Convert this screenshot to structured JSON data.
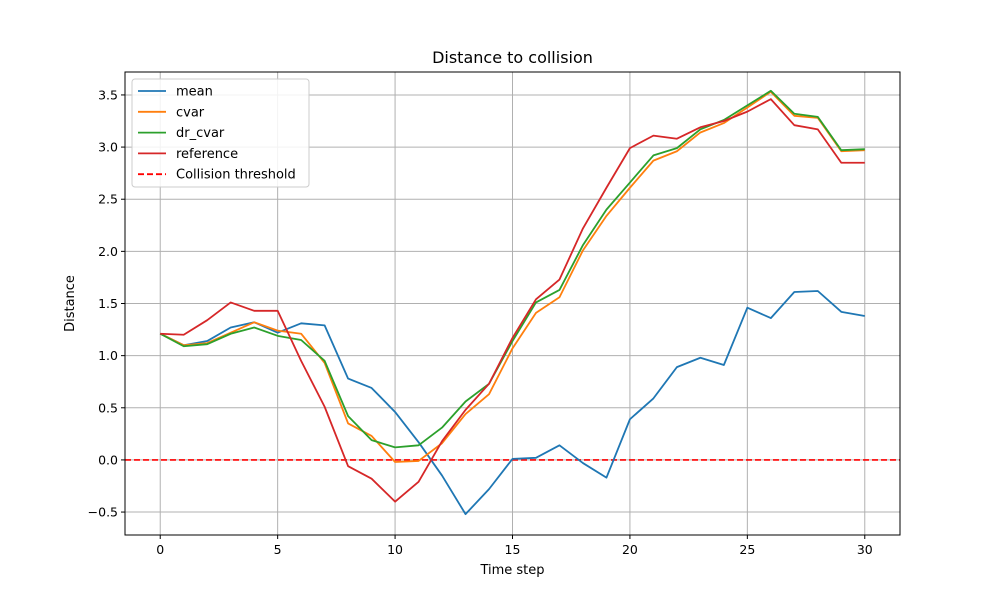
{
  "chart_data": {
    "type": "line",
    "title": "Distance to collision",
    "xlabel": "Time step",
    "ylabel": "Distance",
    "xlim": [
      -1.5,
      31.5
    ],
    "ylim": [
      -0.72,
      3.72
    ],
    "xticks": [
      0,
      5,
      10,
      15,
      20,
      25,
      30
    ],
    "yticks": [
      -0.5,
      0.0,
      0.5,
      1.0,
      1.5,
      2.0,
      2.5,
      3.0,
      3.5
    ],
    "xtick_labels": [
      "0",
      "5",
      "10",
      "15",
      "20",
      "25",
      "30"
    ],
    "ytick_labels": [
      "−0.5",
      "0.0",
      "0.5",
      "1.0",
      "1.5",
      "2.0",
      "2.5",
      "3.0",
      "3.5"
    ],
    "grid": true,
    "legend_position": "top-left",
    "x": [
      0,
      1,
      2,
      3,
      4,
      5,
      6,
      7,
      8,
      9,
      10,
      11,
      12,
      13,
      14,
      15,
      16,
      17,
      18,
      19,
      20,
      21,
      22,
      23,
      24,
      25,
      26,
      27,
      28,
      29,
      30
    ],
    "series": [
      {
        "name": "mean",
        "color": "#1f77b4",
        "style": "solid",
        "values": [
          1.21,
          1.1,
          1.14,
          1.27,
          1.32,
          1.22,
          1.31,
          1.29,
          0.78,
          0.69,
          0.46,
          0.17,
          -0.15,
          -0.52,
          -0.28,
          0.01,
          0.02,
          0.14,
          -0.03,
          -0.17,
          0.39,
          0.59,
          0.89,
          0.98,
          0.91,
          1.46,
          1.36,
          1.61,
          1.62,
          1.42,
          1.38
        ]
      },
      {
        "name": "cvar",
        "color": "#ff7f0e",
        "style": "solid",
        "values": [
          1.21,
          1.1,
          1.12,
          1.22,
          1.32,
          1.24,
          1.21,
          0.93,
          0.35,
          0.23,
          -0.02,
          -0.01,
          0.16,
          0.44,
          0.63,
          1.07,
          1.41,
          1.56,
          2.01,
          2.34,
          2.61,
          2.87,
          2.96,
          3.14,
          3.23,
          3.38,
          3.53,
          3.3,
          3.28,
          2.96,
          2.97
        ]
      },
      {
        "name": "dr_cvar",
        "color": "#2ca02c",
        "style": "solid",
        "values": [
          1.21,
          1.09,
          1.11,
          1.21,
          1.27,
          1.19,
          1.15,
          0.95,
          0.42,
          0.19,
          0.12,
          0.14,
          0.31,
          0.56,
          0.73,
          1.14,
          1.51,
          1.63,
          2.06,
          2.4,
          2.66,
          2.92,
          2.99,
          3.17,
          3.26,
          3.4,
          3.54,
          3.32,
          3.29,
          2.97,
          2.98
        ]
      },
      {
        "name": "reference",
        "color": "#d62728",
        "style": "solid",
        "values": [
          1.21,
          1.2,
          1.34,
          1.51,
          1.43,
          1.43,
          0.95,
          0.51,
          -0.06,
          -0.18,
          -0.4,
          -0.21,
          0.18,
          0.48,
          0.73,
          1.17,
          1.54,
          1.73,
          2.22,
          2.61,
          2.99,
          3.11,
          3.08,
          3.19,
          3.25,
          3.34,
          3.46,
          3.21,
          3.17,
          2.85,
          2.85
        ]
      }
    ],
    "threshold": {
      "name": "Collision threshold",
      "value": 0.0,
      "color": "#ff0000",
      "style": "dashed"
    }
  }
}
